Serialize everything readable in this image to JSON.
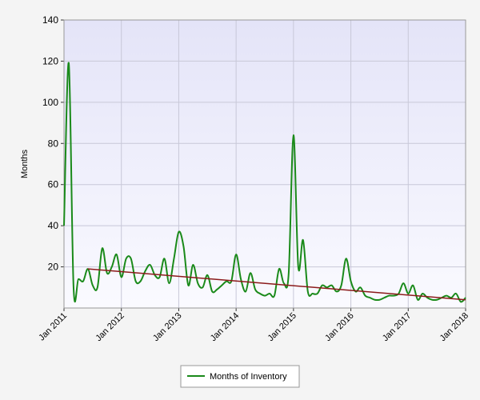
{
  "chart_data": {
    "type": "line",
    "y_label": "Months",
    "x": [
      "2011-01",
      "2011-02",
      "2011-03",
      "2011-04",
      "2011-05",
      "2011-06",
      "2011-07",
      "2011-08",
      "2011-09",
      "2011-10",
      "2011-11",
      "2011-12",
      "2012-01",
      "2012-02",
      "2012-03",
      "2012-04",
      "2012-05",
      "2012-06",
      "2012-07",
      "2012-08",
      "2012-09",
      "2012-10",
      "2012-11",
      "2012-12",
      "2013-01",
      "2013-02",
      "2013-03",
      "2013-04",
      "2013-05",
      "2013-06",
      "2013-07",
      "2013-08",
      "2013-09",
      "2013-10",
      "2013-11",
      "2013-12",
      "2014-01",
      "2014-02",
      "2014-03",
      "2014-04",
      "2014-05",
      "2014-06",
      "2014-07",
      "2014-08",
      "2014-09",
      "2014-10",
      "2014-11",
      "2014-12",
      "2015-01",
      "2015-02",
      "2015-03",
      "2015-04",
      "2015-05",
      "2015-06",
      "2015-07",
      "2015-08",
      "2015-09",
      "2015-10",
      "2015-11",
      "2015-12",
      "2016-01",
      "2016-02",
      "2016-03",
      "2016-04",
      "2016-05",
      "2016-06",
      "2016-07",
      "2016-08",
      "2016-09",
      "2016-10",
      "2016-11",
      "2016-12",
      "2017-01",
      "2017-02",
      "2017-03",
      "2017-04",
      "2017-05",
      "2017-06",
      "2017-07",
      "2017-08",
      "2017-09",
      "2017-10",
      "2017-11",
      "2017-12",
      "2018-01"
    ],
    "series": [
      {
        "name": "Months of Inventory",
        "color": "#1a8a1a",
        "values": [
          40,
          119,
          10,
          14,
          13,
          19,
          11,
          10,
          29,
          17,
          20,
          26,
          15,
          24,
          24,
          13,
          13,
          18,
          21,
          16,
          15,
          24,
          12,
          24,
          37,
          30,
          11,
          21,
          12,
          10,
          16,
          8,
          9,
          11,
          13,
          13,
          26,
          14,
          8,
          17,
          9,
          7,
          6,
          7,
          6,
          19,
          12,
          17,
          84,
          20,
          33,
          8,
          7,
          7,
          11,
          10,
          11,
          8,
          11,
          24,
          13,
          8,
          10,
          6,
          5,
          4,
          4,
          5,
          6,
          6,
          7,
          12,
          7,
          11,
          4,
          7,
          5,
          4,
          4,
          5,
          6,
          5,
          7,
          3,
          5
        ]
      }
    ],
    "trendline": {
      "color": "#8b1a1a",
      "x": [
        "2011-06",
        "2018-01"
      ],
      "values": [
        19,
        4
      ]
    },
    "ylim": [
      0,
      140
    ],
    "yticks": [
      20,
      40,
      60,
      80,
      100,
      120,
      140
    ],
    "xticks": [
      {
        "value": "2011-01",
        "label": "Jan 2011"
      },
      {
        "value": "2012-01",
        "label": "Jan 2012"
      },
      {
        "value": "2013-01",
        "label": "Jan 2013"
      },
      {
        "value": "2014-01",
        "label": "Jan 2014"
      },
      {
        "value": "2015-01",
        "label": "Jan 2015"
      },
      {
        "value": "2016-01",
        "label": "Jan 2016"
      },
      {
        "value": "2017-01",
        "label": "Jan 2017"
      },
      {
        "value": "2018-01",
        "label": "Jan 2018"
      }
    ],
    "grid": true
  }
}
